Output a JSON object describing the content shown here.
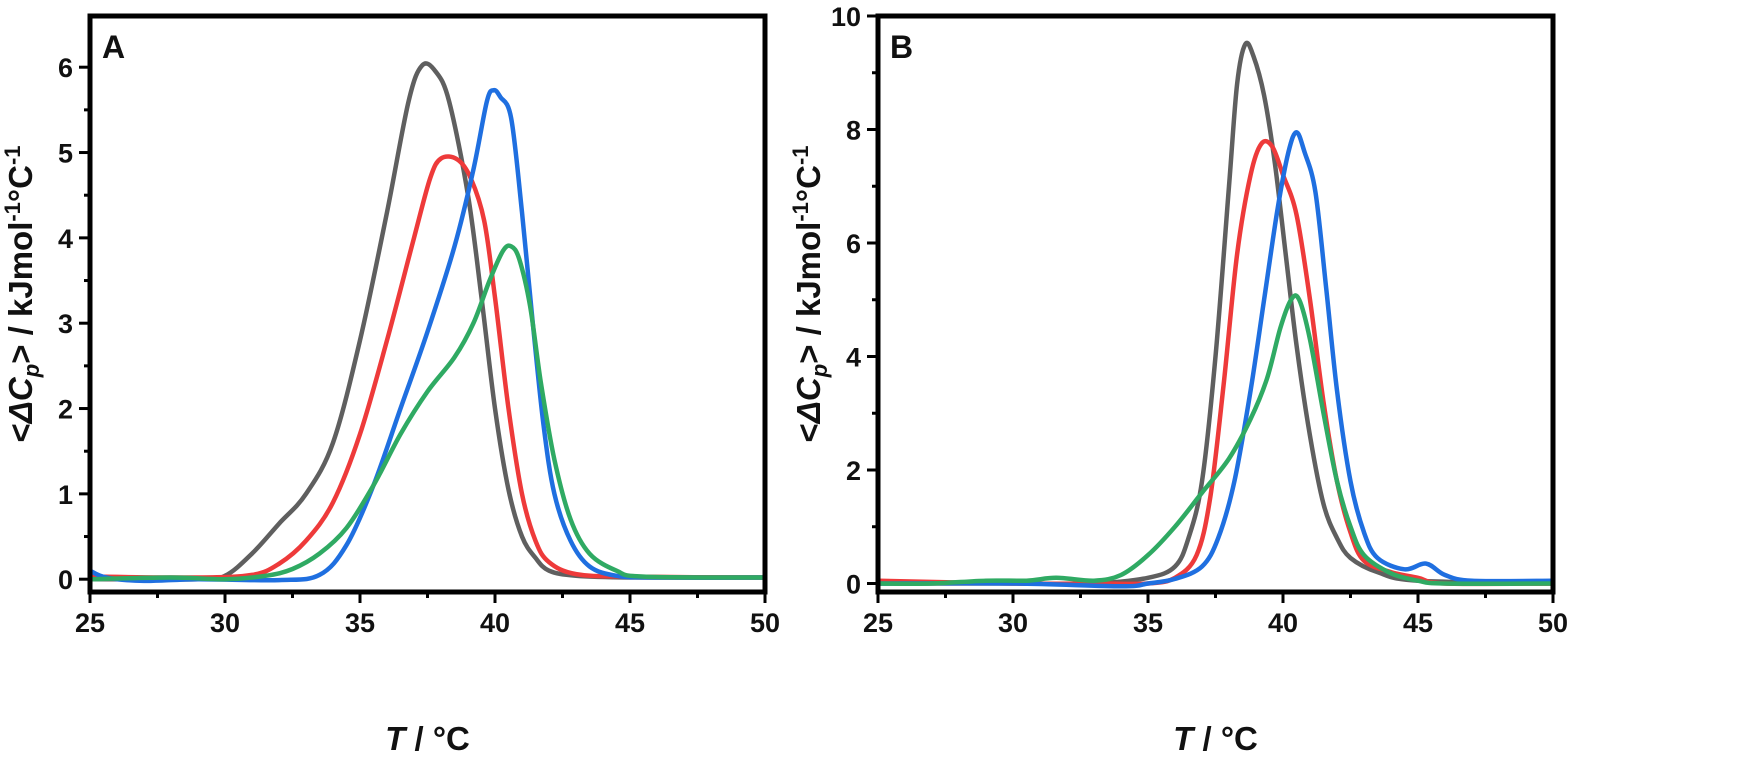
{
  "chart_data": [
    {
      "type": "line",
      "panel_label": "A",
      "xlabel_italic": "T",
      "xlabel_rest": " / °C",
      "ylabel_open": "<",
      "ylabel_delta": "Δ",
      "ylabel_c": "C",
      "ylabel_sub": "p",
      "ylabel_rest": "> / kJmol",
      "ylabel_sup1": "-1",
      "ylabel_mid": "°C",
      "ylabel_sup2": "-1",
      "xlim": [
        25,
        50
      ],
      "ylim": [
        -0.15,
        6.6
      ],
      "xticks": [
        25,
        30,
        35,
        40,
        45,
        50
      ],
      "yticks": [
        0,
        1,
        2,
        3,
        4,
        5,
        6
      ],
      "grid": false,
      "series": [
        {
          "color": "#5f5f5f",
          "points": [
            [
              25,
              0
            ],
            [
              29,
              0
            ],
            [
              30,
              0.04
            ],
            [
              31,
              0.3
            ],
            [
              32,
              0.65
            ],
            [
              33,
              1.0
            ],
            [
              34,
              1.6
            ],
            [
              35,
              2.8
            ],
            [
              36,
              4.3
            ],
            [
              36.8,
              5.6
            ],
            [
              37.3,
              6.02
            ],
            [
              37.8,
              5.95
            ],
            [
              38.3,
              5.6
            ],
            [
              39,
              4.5
            ],
            [
              39.5,
              3.3
            ],
            [
              40,
              2.0
            ],
            [
              40.5,
              1.05
            ],
            [
              41,
              0.5
            ],
            [
              41.5,
              0.25
            ],
            [
              42,
              0.1
            ],
            [
              43,
              0.04
            ],
            [
              45,
              0.02
            ],
            [
              50,
              0.02
            ]
          ]
        },
        {
          "color": "#ee3a3a",
          "points": [
            [
              25,
              0.03
            ],
            [
              29,
              0.02
            ],
            [
              31,
              0.05
            ],
            [
              32,
              0.18
            ],
            [
              33,
              0.45
            ],
            [
              34,
              0.9
            ],
            [
              35,
              1.7
            ],
            [
              36,
              2.8
            ],
            [
              37,
              4.0
            ],
            [
              37.6,
              4.7
            ],
            [
              38,
              4.93
            ],
            [
              38.6,
              4.92
            ],
            [
              39.1,
              4.7
            ],
            [
              39.6,
              4.2
            ],
            [
              40,
              3.3
            ],
            [
              40.5,
              2.0
            ],
            [
              41,
              1.0
            ],
            [
              41.5,
              0.45
            ],
            [
              42,
              0.2
            ],
            [
              43,
              0.06
            ],
            [
              45,
              0.03
            ],
            [
              50,
              0.02
            ]
          ]
        },
        {
          "color": "#1f6fe0",
          "points": [
            [
              25,
              0.1
            ],
            [
              25.6,
              0.02
            ],
            [
              27,
              -0.02
            ],
            [
              29,
              0
            ],
            [
              32,
              -0.01
            ],
            [
              33.5,
              0.05
            ],
            [
              34.5,
              0.4
            ],
            [
              35.5,
              1.1
            ],
            [
              36.5,
              2.0
            ],
            [
              37.5,
              2.9
            ],
            [
              38.5,
              3.9
            ],
            [
              39.2,
              4.8
            ],
            [
              39.7,
              5.6
            ],
            [
              39.95,
              5.73
            ],
            [
              40.2,
              5.65
            ],
            [
              40.6,
              5.4
            ],
            [
              41,
              4.3
            ],
            [
              41.4,
              3.0
            ],
            [
              41.8,
              1.8
            ],
            [
              42.2,
              1.0
            ],
            [
              42.8,
              0.45
            ],
            [
              43.5,
              0.15
            ],
            [
              44.5,
              0.04
            ],
            [
              46,
              0.02
            ],
            [
              50,
              0.02
            ]
          ]
        },
        {
          "color": "#2faa63",
          "points": [
            [
              25,
              0
            ],
            [
              28,
              0.02
            ],
            [
              30,
              0
            ],
            [
              31.5,
              0.04
            ],
            [
              32.5,
              0.12
            ],
            [
              33.5,
              0.3
            ],
            [
              34.5,
              0.6
            ],
            [
              35.5,
              1.1
            ],
            [
              36.5,
              1.7
            ],
            [
              37.5,
              2.2
            ],
            [
              38.5,
              2.6
            ],
            [
              39.2,
              3.0
            ],
            [
              39.8,
              3.5
            ],
            [
              40.3,
              3.85
            ],
            [
              40.6,
              3.9
            ],
            [
              40.9,
              3.75
            ],
            [
              41.3,
              3.2
            ],
            [
              41.7,
              2.3
            ],
            [
              42.2,
              1.4
            ],
            [
              42.8,
              0.7
            ],
            [
              43.5,
              0.3
            ],
            [
              44.5,
              0.1
            ],
            [
              45.5,
              0.03
            ],
            [
              50,
              0.02
            ]
          ]
        }
      ]
    },
    {
      "type": "line",
      "panel_label": "B",
      "xlabel_italic": "T",
      "xlabel_rest": " / °C",
      "ylabel_open": "<",
      "ylabel_delta": "Δ",
      "ylabel_c": "C",
      "ylabel_sub": "p",
      "ylabel_rest": "> / kJmol",
      "ylabel_sup1": "-1",
      "ylabel_mid": "°C",
      "ylabel_sup2": "-1",
      "xlim": [
        25,
        50
      ],
      "ylim": [
        -0.15,
        10.0
      ],
      "xticks": [
        25,
        30,
        35,
        40,
        45,
        50
      ],
      "yticks": [
        0,
        2,
        4,
        6,
        8,
        10
      ],
      "grid": false,
      "series": [
        {
          "color": "#5f5f5f",
          "points": [
            [
              25,
              0
            ],
            [
              30,
              0
            ],
            [
              33,
              0
            ],
            [
              35,
              0.1
            ],
            [
              36,
              0.3
            ],
            [
              36.5,
              0.8
            ],
            [
              37,
              1.8
            ],
            [
              37.5,
              4.0
            ],
            [
              38,
              7.0
            ],
            [
              38.3,
              8.8
            ],
            [
              38.6,
              9.5
            ],
            [
              38.9,
              9.3
            ],
            [
              39.3,
              8.6
            ],
            [
              39.7,
              7.4
            ],
            [
              40.1,
              5.8
            ],
            [
              40.5,
              4.2
            ],
            [
              41,
              2.6
            ],
            [
              41.5,
              1.4
            ],
            [
              42,
              0.8
            ],
            [
              42.5,
              0.45
            ],
            [
              43.5,
              0.2
            ],
            [
              45,
              0.05
            ],
            [
              50,
              0
            ]
          ]
        },
        {
          "color": "#ee3a3a",
          "points": [
            [
              25,
              0.05
            ],
            [
              30,
              0
            ],
            [
              33,
              0
            ],
            [
              35,
              0
            ],
            [
              36,
              0.1
            ],
            [
              36.8,
              0.5
            ],
            [
              37.3,
              1.5
            ],
            [
              37.8,
              3.5
            ],
            [
              38.3,
              5.8
            ],
            [
              38.8,
              7.2
            ],
            [
              39.2,
              7.75
            ],
            [
              39.6,
              7.7
            ],
            [
              40,
              7.2
            ],
            [
              40.5,
              6.5
            ],
            [
              41,
              5.0
            ],
            [
              41.5,
              3.2
            ],
            [
              42,
              1.8
            ],
            [
              42.5,
              0.9
            ],
            [
              43,
              0.4
            ],
            [
              44,
              0.2
            ],
            [
              45,
              0.1
            ],
            [
              46,
              0
            ],
            [
              50,
              0
            ]
          ]
        },
        {
          "color": "#1f6fe0",
          "points": [
            [
              25,
              0
            ],
            [
              30,
              0
            ],
            [
              34,
              -0.05
            ],
            [
              35,
              0
            ],
            [
              36,
              0.08
            ],
            [
              37,
              0.3
            ],
            [
              37.6,
              0.8
            ],
            [
              38.2,
              1.8
            ],
            [
              38.8,
              3.4
            ],
            [
              39.3,
              5.0
            ],
            [
              39.8,
              6.6
            ],
            [
              40.2,
              7.6
            ],
            [
              40.5,
              7.95
            ],
            [
              40.8,
              7.6
            ],
            [
              41.2,
              6.9
            ],
            [
              41.6,
              5.2
            ],
            [
              42,
              3.4
            ],
            [
              42.5,
              1.8
            ],
            [
              43,
              0.9
            ],
            [
              43.5,
              0.45
            ],
            [
              44.5,
              0.25
            ],
            [
              45.3,
              0.35
            ],
            [
              46,
              0.15
            ],
            [
              47,
              0.05
            ],
            [
              50,
              0.05
            ]
          ]
        },
        {
          "color": "#2faa63",
          "points": [
            [
              25,
              0
            ],
            [
              27,
              0
            ],
            [
              29,
              0.05
            ],
            [
              30.5,
              0.05
            ],
            [
              31.6,
              0.1
            ],
            [
              33,
              0.05
            ],
            [
              34,
              0.15
            ],
            [
              35,
              0.5
            ],
            [
              36,
              1.0
            ],
            [
              37,
              1.6
            ],
            [
              38,
              2.2
            ],
            [
              38.8,
              2.9
            ],
            [
              39.4,
              3.6
            ],
            [
              39.9,
              4.5
            ],
            [
              40.3,
              5.0
            ],
            [
              40.6,
              5.0
            ],
            [
              41,
              4.3
            ],
            [
              41.5,
              3.0
            ],
            [
              42,
              1.8
            ],
            [
              42.5,
              1.0
            ],
            [
              43,
              0.5
            ],
            [
              44,
              0.18
            ],
            [
              45,
              0.05
            ],
            [
              46,
              0
            ],
            [
              50,
              0
            ]
          ]
        }
      ]
    }
  ]
}
